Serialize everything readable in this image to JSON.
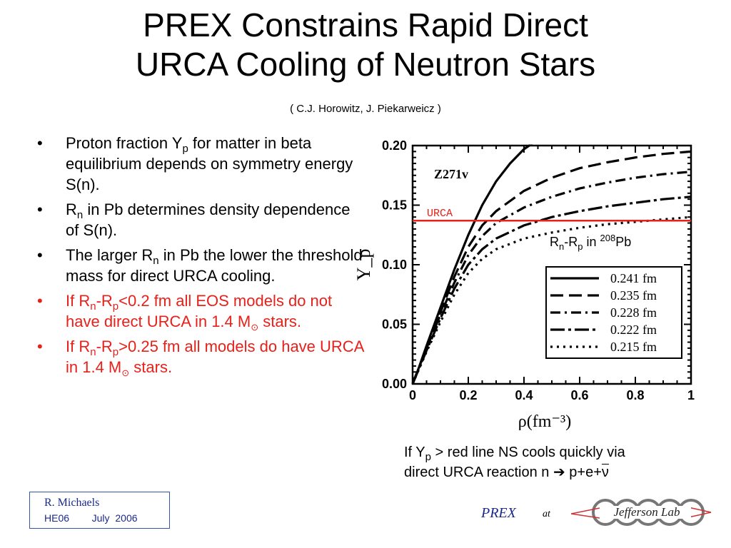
{
  "title": {
    "line1": "PREX Constrains Rapid Direct",
    "line2": "URCA Cooling of Neutron Stars",
    "authors": "(  C.J. Horowitz,  J. Piekarweicz  )"
  },
  "bullets": [
    {
      "color": "#000000",
      "parts": [
        "Proton fraction Y",
        "p",
        " for matter in beta equilibrium depends on symmetry energy S(n)."
      ]
    },
    {
      "color": "#000000",
      "parts": [
        "R",
        "n",
        " in Pb determines density dependence of S(n)."
      ]
    },
    {
      "color": "#000000",
      "parts": [
        "The larger R",
        "n",
        " in Pb the lower the threshold mass for direct URCA cooling."
      ]
    },
    {
      "color": "#e8201a",
      "parts": [
        "If  R",
        "n",
        "-R",
        "p",
        "<0.2 fm  all EOS models do  not  have  direct  URCA  in 1.4 M",
        "⊙",
        "  stars."
      ]
    },
    {
      "color": "#e8201a",
      "parts": [
        "If  R",
        "n",
        "-R",
        "p",
        ">0.25 fm  all models do have  URCA  in  1.4 M",
        "⊙",
        "  stars."
      ]
    }
  ],
  "chart_data": {
    "type": "line",
    "title": "",
    "panel_label": "Z271v",
    "xlabel": "ρ(fm⁻³)",
    "ylabel": "Y_p",
    "xlim": [
      0,
      1
    ],
    "ylim": [
      0,
      0.2
    ],
    "x_ticks": [
      "0",
      "0.2",
      "0.4",
      "0.6",
      "0.8",
      "1"
    ],
    "y_ticks": [
      "0.00",
      "0.05",
      "0.10",
      "0.15",
      "0.20"
    ],
    "reference_line": {
      "label": "URCA",
      "y": 0.137,
      "color": "#e8201a"
    },
    "inset_label": {
      "parts": [
        "R",
        "n",
        "-R",
        "p",
        " in ",
        "208",
        "Pb"
      ]
    },
    "legend_position": "bottom-right",
    "series": [
      {
        "name": "0.241 fm",
        "dash": "solid",
        "x": [
          0,
          0.02,
          0.05,
          0.1,
          0.15,
          0.2,
          0.25,
          0.3,
          0.35,
          0.4,
          0.45
        ],
        "y": [
          0,
          0.012,
          0.032,
          0.064,
          0.096,
          0.125,
          0.15,
          0.17,
          0.185,
          0.197,
          0.205
        ]
      },
      {
        "name": "0.235 fm",
        "dash": "long-dash",
        "x": [
          0,
          0.05,
          0.1,
          0.15,
          0.2,
          0.25,
          0.3,
          0.4,
          0.5,
          0.6,
          0.7,
          0.8,
          0.9,
          1.0
        ],
        "y": [
          0,
          0.03,
          0.06,
          0.09,
          0.115,
          0.133,
          0.145,
          0.162,
          0.173,
          0.181,
          0.186,
          0.19,
          0.193,
          0.195
        ]
      },
      {
        "name": "0.228 fm",
        "dash": "dash-dot",
        "x": [
          0,
          0.05,
          0.1,
          0.15,
          0.2,
          0.25,
          0.3,
          0.4,
          0.5,
          0.6,
          0.7,
          0.8,
          0.9,
          1.0
        ],
        "y": [
          0,
          0.03,
          0.058,
          0.085,
          0.108,
          0.124,
          0.135,
          0.148,
          0.157,
          0.164,
          0.169,
          0.173,
          0.176,
          0.178
        ]
      },
      {
        "name": "0.222 fm",
        "dash": "long-dash-dot",
        "x": [
          0,
          0.05,
          0.1,
          0.15,
          0.2,
          0.25,
          0.3,
          0.4,
          0.5,
          0.6,
          0.7,
          0.8,
          0.9,
          1.0
        ],
        "y": [
          0,
          0.028,
          0.055,
          0.08,
          0.1,
          0.113,
          0.122,
          0.133,
          0.14,
          0.145,
          0.149,
          0.152,
          0.155,
          0.157
        ]
      },
      {
        "name": "0.215 fm",
        "dash": "dotted",
        "x": [
          0,
          0.05,
          0.1,
          0.15,
          0.2,
          0.25,
          0.3,
          0.4,
          0.5,
          0.6,
          0.7,
          0.8,
          0.9,
          1.0
        ],
        "y": [
          0,
          0.027,
          0.052,
          0.075,
          0.093,
          0.105,
          0.113,
          0.122,
          0.127,
          0.131,
          0.134,
          0.136,
          0.138,
          0.14
        ]
      }
    ]
  },
  "caption": {
    "line1_parts": [
      "If Y",
      "p",
      " > red line NS cools quickly ",
      "via"
    ],
    "line2_parts": [
      "direct URCA reaction n ",
      "➔",
      " p+e+",
      "ν"
    ]
  },
  "footer": {
    "author": "R.  Michaels",
    "conf": "HE06",
    "date": "July  2006",
    "prex": "PREX",
    "at": "at",
    "logo_text": "Jefferson Lab"
  }
}
